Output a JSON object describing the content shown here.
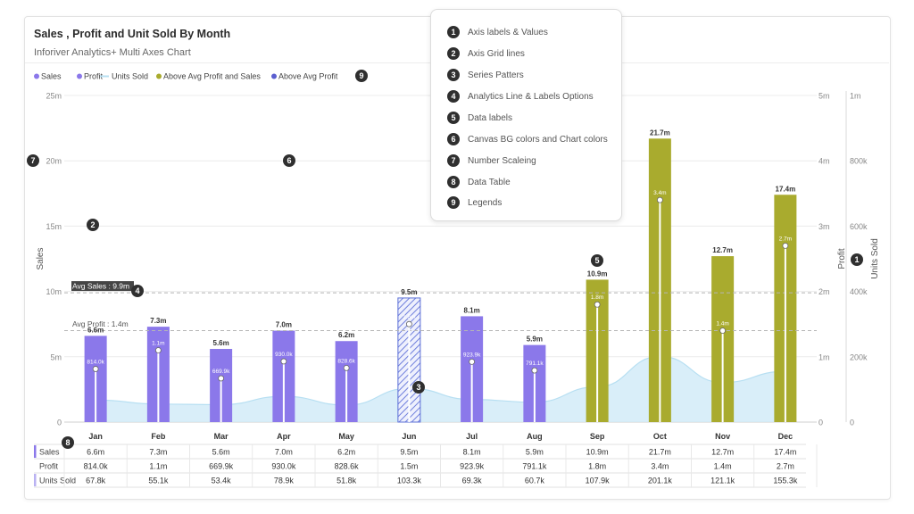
{
  "header": {
    "title": "Sales , Profit and Unit Sold By Month",
    "subtitle": "Inforiver Analytics+ Multi Axes Chart"
  },
  "colors": {
    "sales": "#8b78ea",
    "above_avg": "#a9ab2e",
    "units_fill": "#cfeaf7",
    "units_line": "#b7dff2",
    "profit_line": "#ffffff",
    "avg_label_bg": "#454545",
    "grid": "#ececec"
  },
  "annotations": {
    "title": "",
    "items": [
      {
        "num": "1",
        "label": "Axis labels & Values"
      },
      {
        "num": "2",
        "label": "Axis Grid lines"
      },
      {
        "num": "3",
        "label": "Series Patters"
      },
      {
        "num": "4",
        "label": "Analytics Line & Labels Options"
      },
      {
        "num": "5",
        "label": "Data labels"
      },
      {
        "num": "6",
        "label": "Canvas BG colors and Chart colors"
      },
      {
        "num": "7",
        "label": "Number Scaleing"
      },
      {
        "num": "8",
        "label": "Data Table"
      },
      {
        "num": "9",
        "label": "Legends"
      }
    ]
  },
  "markers": {
    "m1": "1",
    "m2": "2",
    "m3": "3",
    "m4": "4",
    "m5": "5",
    "m6": "6",
    "m7": "7",
    "m8": "8",
    "m9": "9"
  },
  "chart_data": {
    "type": "bar",
    "title": "Sales , Profit and Unit Sold By Month",
    "subtitle": "Inforiver Analytics+ Multi Axes Chart",
    "categories": [
      "Jan",
      "Feb",
      "Mar",
      "Apr",
      "May",
      "Jun",
      "Jul",
      "Aug",
      "Sep",
      "Oct",
      "Nov",
      "Dec"
    ],
    "legend": [
      {
        "name": "Sales",
        "shape": "dot",
        "color": "#8b78ea"
      },
      {
        "name": "Profit",
        "shape": "dot",
        "color": "#8b78ea"
      },
      {
        "name": "Units Sold",
        "shape": "line",
        "color": "#b7dff2"
      },
      {
        "name": "Above Avg Profit and Sales",
        "shape": "dot",
        "color": "#a9ab2e"
      },
      {
        "name": "Above Avg Profit",
        "shape": "dot",
        "color": "#5b5fd0"
      }
    ],
    "legend_position": "top-left",
    "series": [
      {
        "name": "Sales",
        "axis": "left",
        "type": "bar",
        "values": [
          6.6,
          7.3,
          5.6,
          7.0,
          6.2,
          9.5,
          8.1,
          5.9,
          10.9,
          21.7,
          12.7,
          17.4
        ],
        "labels": [
          "6.6m",
          "7.3m",
          "5.6m",
          "7.0m",
          "6.2m",
          "9.5m",
          "8.1m",
          "5.9m",
          "10.9m",
          "21.7m",
          "12.7m",
          "17.4m"
        ],
        "highlight": [
          "normal",
          "normal",
          "normal",
          "normal",
          "normal",
          "pattern",
          "normal",
          "normal",
          "above",
          "above",
          "above",
          "above"
        ]
      },
      {
        "name": "Profit",
        "axis": "right1",
        "type": "lollipop",
        "values": [
          0.814,
          1.1,
          0.6699,
          0.93,
          0.8286,
          1.5,
          0.9239,
          0.7911,
          1.8,
          3.4,
          1.4,
          2.7
        ],
        "labels": [
          "814.0k",
          "1.1m",
          "669.9k",
          "930.0k",
          "828.6k",
          "1.5m",
          "923.9k",
          "791.1k",
          "1.8m",
          "3.4m",
          "1.4m",
          "2.7m"
        ]
      },
      {
        "name": "Units Sold",
        "axis": "right2",
        "type": "area",
        "values": [
          67.8,
          55.1,
          53.4,
          78.9,
          51.8,
          103.3,
          69.3,
          60.7,
          107.9,
          201.1,
          121.1,
          155.3
        ]
      }
    ],
    "axes": {
      "left": {
        "label": "Sales",
        "range": [
          0,
          25
        ],
        "ticks": [
          "0",
          "5m",
          "10m",
          "15m",
          "20m",
          "25m"
        ]
      },
      "right1": {
        "label": "Profit",
        "range": [
          0,
          5
        ],
        "ticks": [
          "0",
          "1m",
          "2m",
          "3m",
          "4m",
          "5m"
        ]
      },
      "right2": {
        "label": "Units Sold",
        "range": [
          0,
          1000
        ],
        "ticks": [
          "0",
          "200k",
          "400k",
          "600k",
          "800k",
          "1m"
        ]
      }
    },
    "averages": [
      {
        "label": "Avg Sales : 9.9m",
        "axis": "left",
        "value": 9.9
      },
      {
        "label": "Avg Profit : 1.4m",
        "axis": "right1",
        "value": 1.4
      }
    ],
    "grid": true,
    "data_table": {
      "rows": [
        {
          "label": "Sales",
          "values": [
            "6.6m",
            "7.3m",
            "5.6m",
            "7.0m",
            "6.2m",
            "9.5m",
            "8.1m",
            "5.9m",
            "10.9m",
            "21.7m",
            "12.7m",
            "17.4m"
          ]
        },
        {
          "label": "Profit",
          "values": [
            "814.0k",
            "1.1m",
            "669.9k",
            "930.0k",
            "828.6k",
            "1.5m",
            "923.9k",
            "791.1k",
            "1.8m",
            "3.4m",
            "1.4m",
            "2.7m"
          ]
        },
        {
          "label": "Units Sold",
          "values": [
            "67.8k",
            "55.1k",
            "53.4k",
            "78.9k",
            "51.8k",
            "103.3k",
            "69.3k",
            "60.7k",
            "107.9k",
            "201.1k",
            "121.1k",
            "155.3k"
          ]
        }
      ]
    }
  }
}
